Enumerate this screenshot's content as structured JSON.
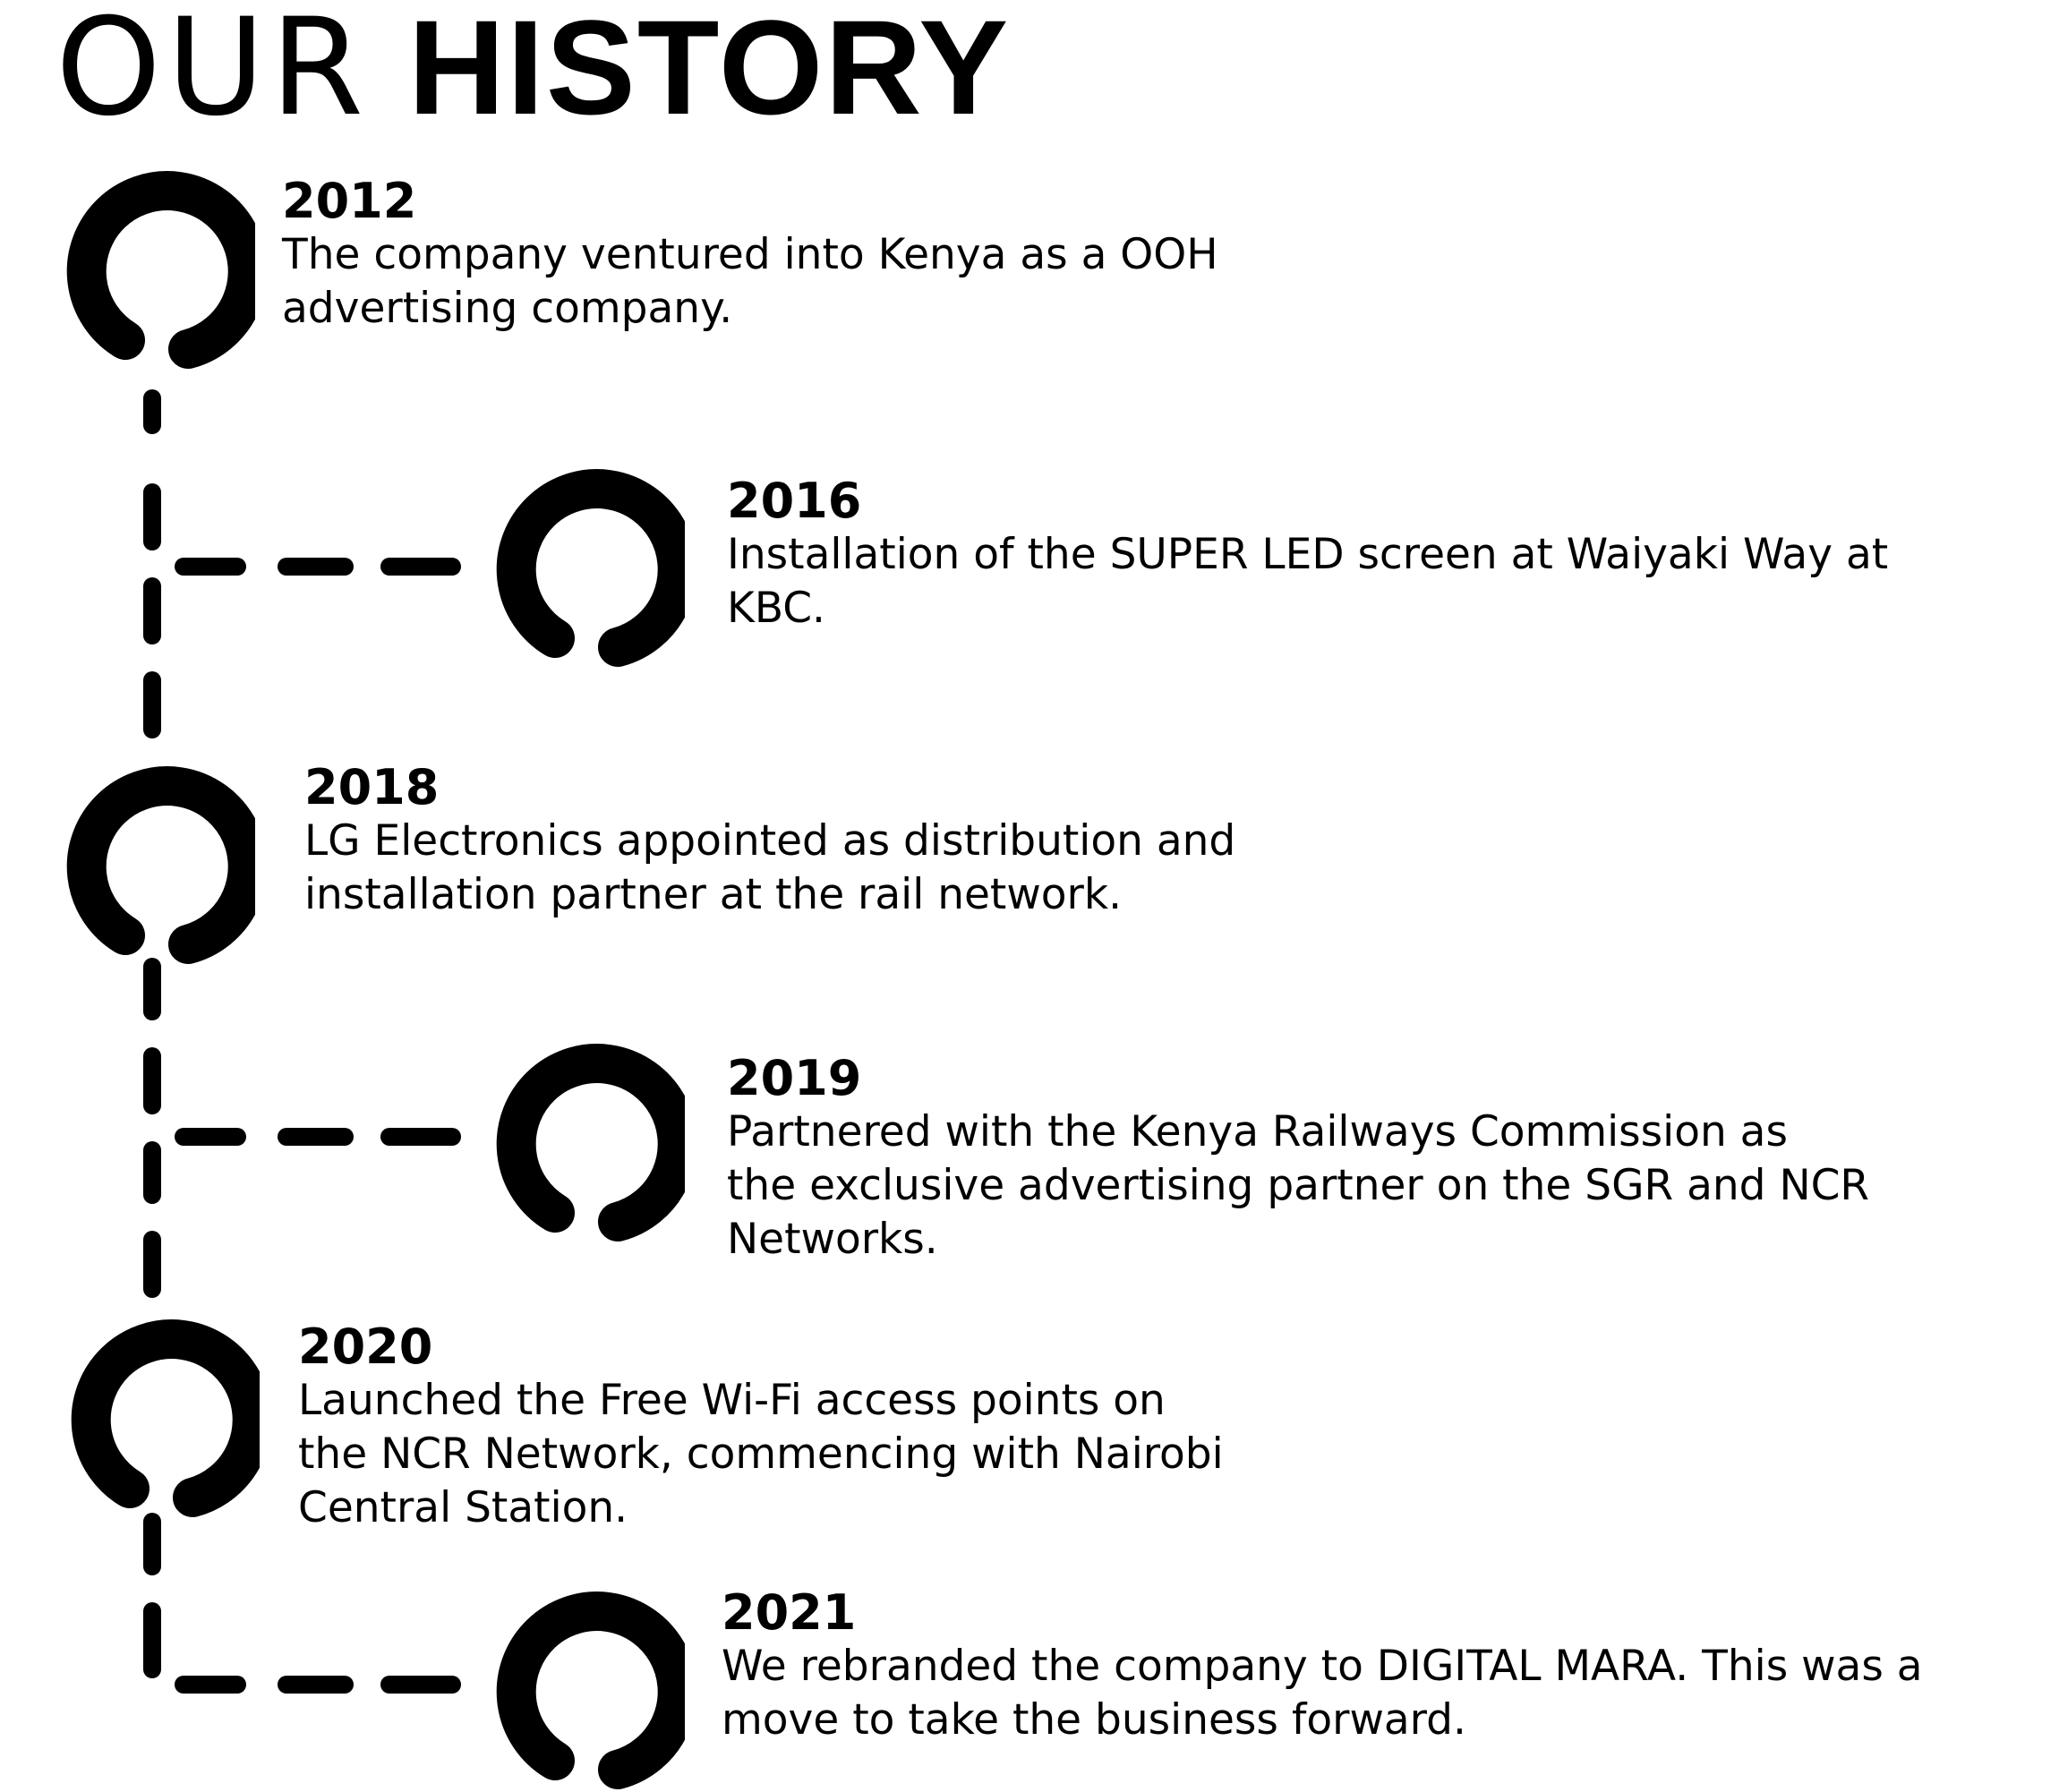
{
  "title": {
    "part1": "OUR",
    "part2": "HISTORY"
  },
  "milestones": [
    {
      "year": "2012",
      "lines": [
        "The company ventured into Kenya as a OOH",
        "advertising company."
      ]
    },
    {
      "year": "2016",
      "lines": [
        "Installation of the SUPER LED screen at Waiyaki Way at",
        "KBC."
      ]
    },
    {
      "year": "2018",
      "lines": [
        "LG Electronics appointed as distribution and",
        "installation partner at the rail network."
      ]
    },
    {
      "year": "2019",
      "lines": [
        "Partnered with the Kenya Railways Commission as",
        "the exclusive advertising partner on the SGR and NCR",
        "Networks."
      ]
    },
    {
      "year": "2020",
      "lines": [
        "Launched the Free Wi-Fi access points on",
        "the NCR Network, commencing with Nairobi",
        "Central Station."
      ]
    },
    {
      "year": "2021",
      "lines": [
        "We rebranded the company to DIGITAL MARA. This was a",
        "move to take the business forward."
      ]
    }
  ]
}
